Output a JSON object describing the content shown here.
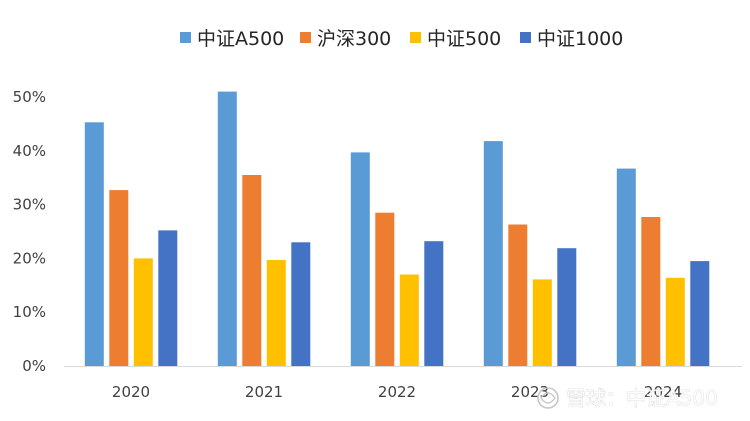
{
  "chart_data": {
    "type": "bar",
    "title": "",
    "xlabel": "",
    "ylabel": "",
    "categories": [
      "2020",
      "2021",
      "2022",
      "2023",
      "2024"
    ],
    "ylim": [
      0,
      50
    ],
    "y_ticks": [
      "0%",
      "10%",
      "20%",
      "30%",
      "40%",
      "50%"
    ],
    "y_unit": "%",
    "grid": false,
    "legend_position": "top",
    "series": [
      {
        "name": "中证A500",
        "color": "#5B9BD5",
        "values": [
          45.3,
          51.0,
          39.7,
          41.8,
          36.7
        ]
      },
      {
        "name": "沪深300",
        "color": "#ED7D31",
        "values": [
          32.7,
          35.5,
          28.5,
          26.3,
          27.7
        ]
      },
      {
        "name": "中证500",
        "color": "#FFC000",
        "values": [
          20.0,
          19.7,
          17.0,
          16.1,
          16.4
        ]
      },
      {
        "name": "中证1000",
        "color": "#4472C4",
        "values": [
          25.2,
          23.0,
          23.2,
          21.9,
          19.5
        ]
      }
    ]
  },
  "watermark": {
    "text": "雪球：中证A500",
    "icon": "xueqiu-snowball-logo-icon"
  }
}
